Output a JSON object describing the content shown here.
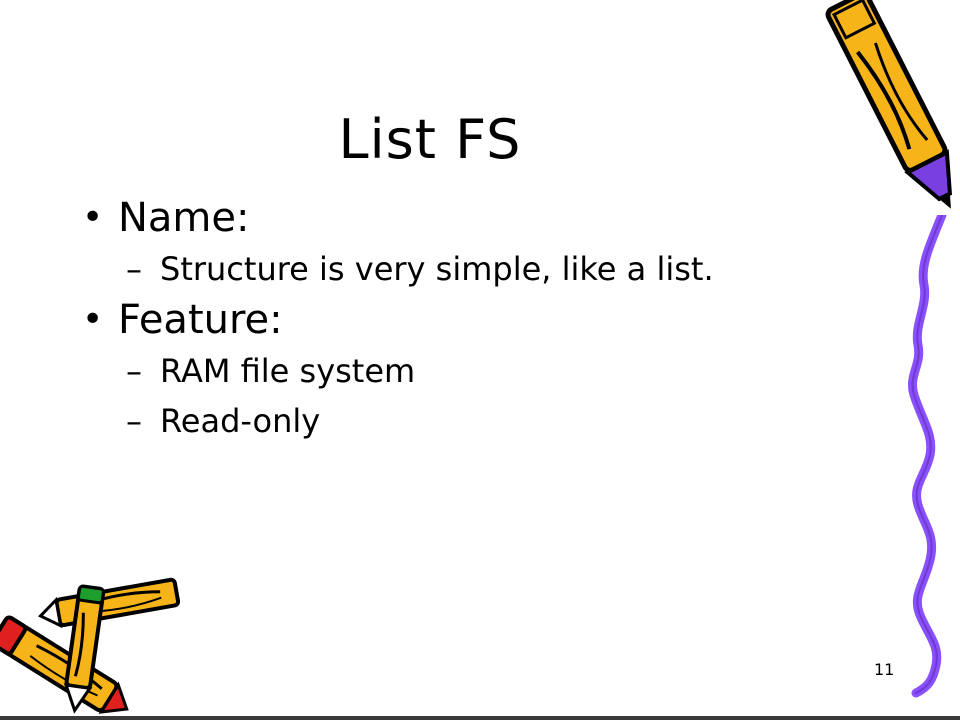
{
  "slide": {
    "title": "List FS",
    "bullets": [
      {
        "marker": "•",
        "text": "Name:",
        "subitems": [
          {
            "marker": "–",
            "text": "Structure is very simple, like a list."
          }
        ]
      },
      {
        "marker": "•",
        "text": "Feature:",
        "subitems": [
          {
            "marker": "–",
            "text": "RAM file system"
          },
          {
            "marker": "–",
            "text": "Read-only"
          }
        ]
      }
    ],
    "page_number": "11"
  },
  "colors": {
    "pencil_body": "#f6b418",
    "pencil_tip": "#7a3fe0",
    "pencil_outline": "#000000",
    "squiggle": "#8a4fff",
    "pencil_green": "#1e9e2c",
    "pencil_red": "#e01f1f"
  }
}
